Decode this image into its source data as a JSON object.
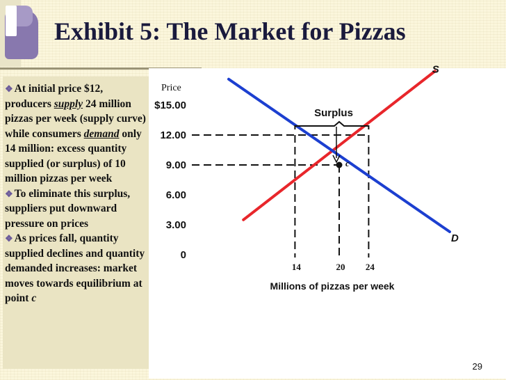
{
  "slide": {
    "title": "Exhibit 5: The Market for Pizzas",
    "page_number": "29"
  },
  "bullets": [
    {
      "runs": [
        {
          "t": "At initial price $12, producers "
        },
        {
          "t": "supply",
          "style": "bi"
        },
        {
          "t": " 24 million pizzas per week (supply curve) while consumers "
        },
        {
          "t": "demand",
          "style": "bi"
        },
        {
          "t": " only 14 million: excess quantity supplied (or surplus)  of 10 million pizzas per week"
        }
      ]
    },
    {
      "runs": [
        {
          "t": "To eliminate this surplus, suppliers put downward pressure on prices"
        }
      ]
    },
    {
      "runs": [
        {
          "t": "As prices fall, quantity supplied declines and quantity demanded increases: market moves towards equilibrium at point "
        },
        {
          "t": "c",
          "style": "i"
        }
      ]
    }
  ],
  "chart_data": {
    "type": "line",
    "ylabel": "Price",
    "xlabel": "Millions of pizzas per week",
    "y_ticks": [
      {
        "value": 0,
        "label": "0"
      },
      {
        "value": 3,
        "label": "3.00"
      },
      {
        "value": 6,
        "label": "6.00"
      },
      {
        "value": 9,
        "label": "9.00"
      },
      {
        "value": 12,
        "label": "12.00"
      },
      {
        "value": 15,
        "label": "$15.00"
      }
    ],
    "x_ticks": [
      {
        "value": 14,
        "label": "14"
      },
      {
        "value": 20,
        "label": "20"
      },
      {
        "value": 24,
        "label": "24"
      }
    ],
    "series": [
      {
        "name": "S",
        "color": "#e8262b",
        "points": [
          [
            7,
            3.5
          ],
          [
            33,
            18.4
          ]
        ]
      },
      {
        "name": "D",
        "color": "#1c3fd0",
        "points": [
          [
            5,
            17.6
          ],
          [
            35,
            2.3
          ]
        ]
      }
    ],
    "annotations": [
      {
        "label": "Surplus",
        "x_from": 14,
        "x_to": 24,
        "price": 12
      },
      {
        "label": "c",
        "x": 20,
        "y": 9
      }
    ],
    "guides": [
      {
        "price": 12,
        "qty": [
          14,
          24
        ]
      },
      {
        "price": 9,
        "qty": [
          20
        ]
      }
    ],
    "grid": false,
    "legend": "none"
  }
}
